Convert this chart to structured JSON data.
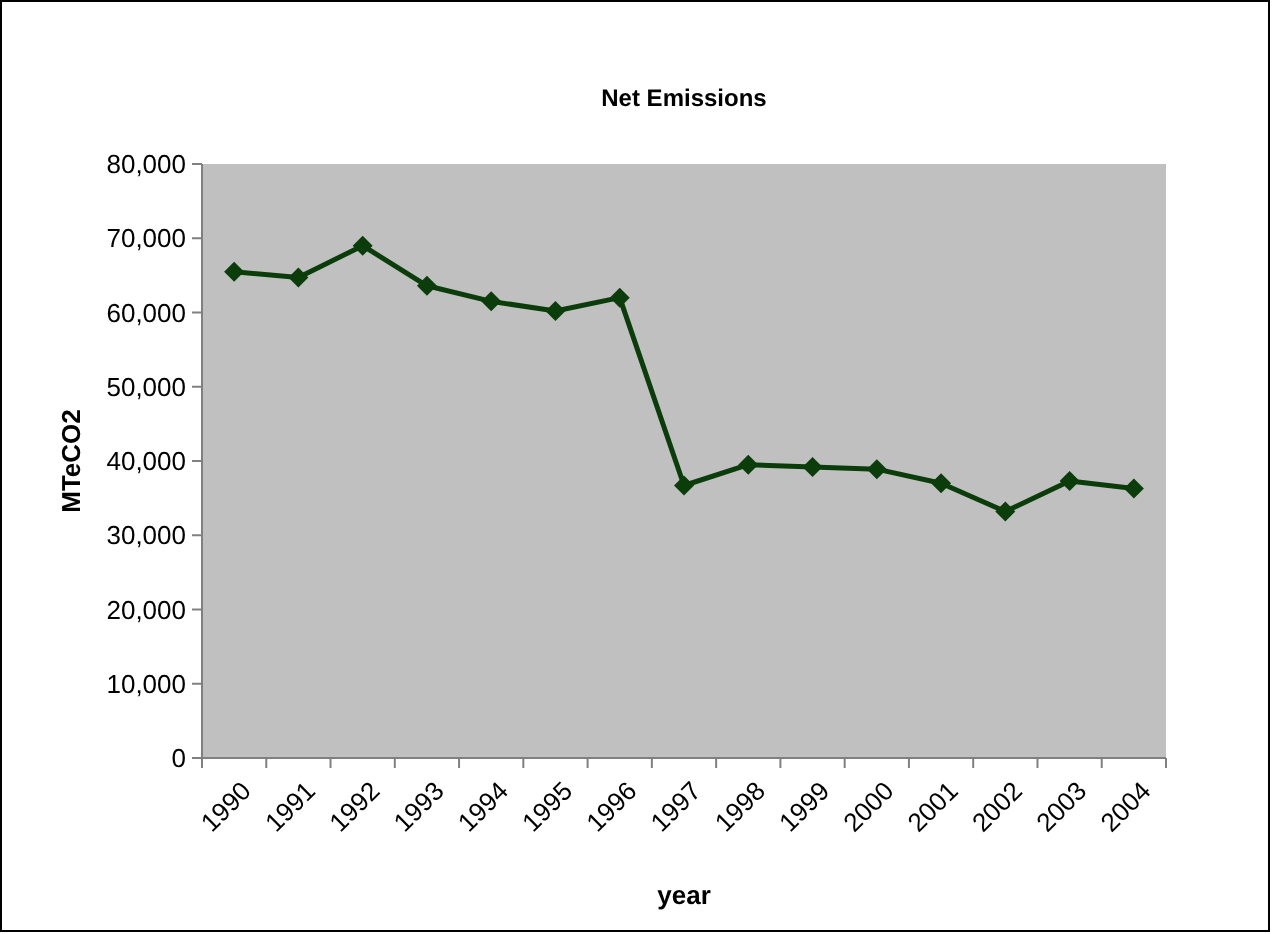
{
  "chart_data": {
    "type": "line",
    "title": "Net Emissions",
    "xlabel": "year",
    "ylabel": "MTeCO2",
    "categories": [
      "1990",
      "1991",
      "1992",
      "1993",
      "1994",
      "1995",
      "1996",
      "1997",
      "1998",
      "1999",
      "2000",
      "2001",
      "2002",
      "2003",
      "2004"
    ],
    "series": [
      {
        "color": "#0b3d0b",
        "values": [
          65500,
          64700,
          69000,
          63600,
          61500,
          60200,
          62000,
          36700,
          39500,
          39200,
          38900,
          37000,
          33200,
          37300,
          36300
        ]
      }
    ],
    "ylim": [
      0,
      80000
    ],
    "yticks": [
      {
        "value": 0,
        "label": "0"
      },
      {
        "value": 10000,
        "label": "10,000"
      },
      {
        "value": 20000,
        "label": "20,000"
      },
      {
        "value": 30000,
        "label": "30,000"
      },
      {
        "value": 40000,
        "label": "40,000"
      },
      {
        "value": 50000,
        "label": "50,000"
      },
      {
        "value": 60000,
        "label": "60,000"
      },
      {
        "value": 70000,
        "label": "70,000"
      },
      {
        "value": 80000,
        "label": "80,000"
      }
    ],
    "grid": false,
    "marker": "diamond",
    "line_style": "solid"
  }
}
